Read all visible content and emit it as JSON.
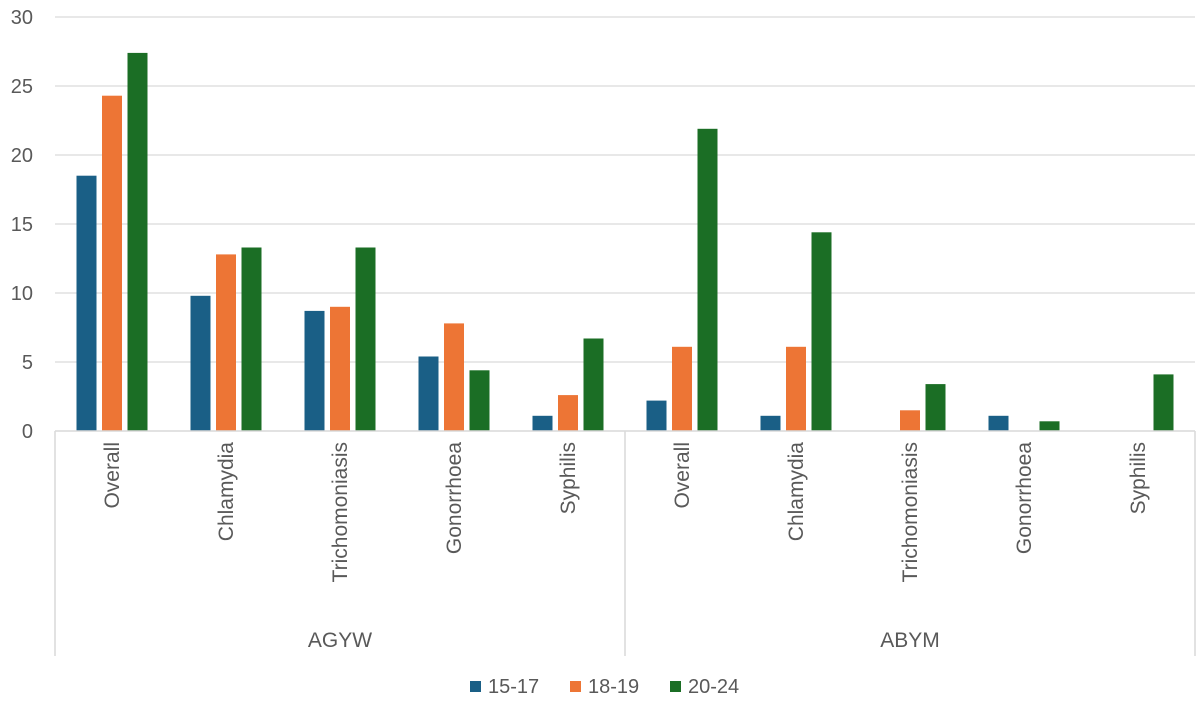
{
  "chart_data": {
    "type": "bar",
    "title": "",
    "xlabel": "",
    "ylabel": "",
    "ylim": [
      0,
      30
    ],
    "yticks": [
      0,
      5,
      10,
      15,
      20,
      25,
      30
    ],
    "grid": true,
    "legend_position": "bottom",
    "groups": [
      {
        "name": "AGYW",
        "categories": [
          "Overall",
          "Chlamydia",
          "Trichomoniasis",
          "Gonorrhoea",
          "Syphilis"
        ]
      },
      {
        "name": "ABYM",
        "categories": [
          "Overall",
          "Chlamydia",
          "Trichomoniasis",
          "Gonorrhoea",
          "Syphilis"
        ]
      }
    ],
    "series": [
      {
        "name": "15-17",
        "color": "#1a5f86",
        "values": [
          18.5,
          9.8,
          8.7,
          5.4,
          1.1,
          2.2,
          1.1,
          null,
          1.1,
          null
        ]
      },
      {
        "name": "18-19",
        "color": "#ed7535",
        "values": [
          24.3,
          12.8,
          9.0,
          7.8,
          2.6,
          6.1,
          6.1,
          1.5,
          null,
          null
        ]
      },
      {
        "name": "20-24",
        "color": "#1b6e25",
        "values": [
          27.4,
          13.3,
          13.3,
          4.4,
          6.7,
          21.9,
          14.4,
          3.4,
          0.7,
          4.1
        ]
      }
    ]
  }
}
